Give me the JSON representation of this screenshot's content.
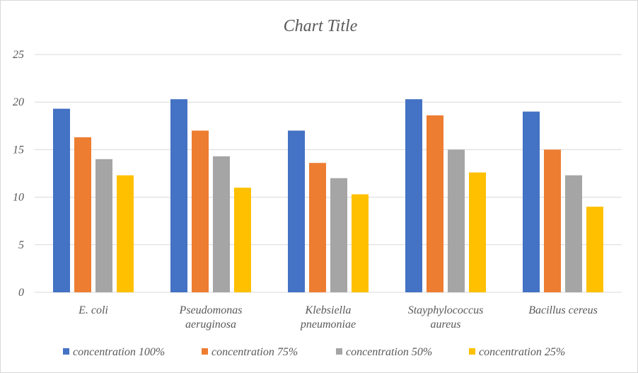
{
  "chart_data": {
    "type": "bar",
    "title": "Chart Title",
    "xlabel": "",
    "ylabel": "",
    "ylim": [
      0,
      25
    ],
    "yticks": [
      "0",
      "5",
      "10",
      "15",
      "20",
      "25"
    ],
    "grid": true,
    "legend_position": "bottom",
    "categories": [
      [
        "E. coli"
      ],
      [
        "Pseudomonas",
        "aeruginosa"
      ],
      [
        "Klebsiella",
        "pneumoniae"
      ],
      [
        "Stayphylococcus",
        "aureus"
      ],
      [
        "Bacillus cereus"
      ]
    ],
    "series": [
      {
        "name": "concentration 100%",
        "color": "#4472c4",
        "values": [
          19.3,
          20.3,
          17.0,
          20.3,
          19.0
        ]
      },
      {
        "name": "concentration 75%",
        "color": "#ed7d31",
        "values": [
          16.3,
          17.0,
          13.6,
          18.6,
          15.0
        ]
      },
      {
        "name": "concentration 50%",
        "color": "#a5a5a5",
        "values": [
          14.0,
          14.3,
          12.0,
          15.0,
          12.3
        ]
      },
      {
        "name": "concentration 25%",
        "color": "#ffc000",
        "values": [
          12.3,
          11.0,
          10.3,
          12.6,
          9.0
        ]
      }
    ]
  }
}
